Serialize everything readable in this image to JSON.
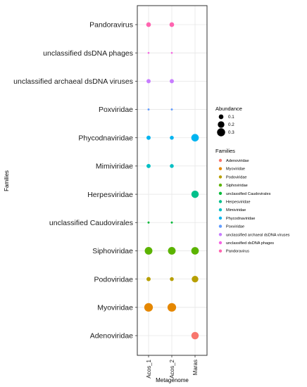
{
  "chart_data": {
    "type": "scatter",
    "title": "",
    "xlabel": "Metagenome",
    "ylabel": "Families",
    "x_categories": [
      "Acos_1",
      "Acos_2",
      "Maras"
    ],
    "y_categories": [
      "Adenoviridae",
      "Myoviridae",
      "Podoviridae",
      "Siphoviridae",
      "unclassified Caudovirales",
      "Herpesviridae",
      "Mimiviridae",
      "Phycodnaviridae",
      "Poxviridae",
      "unclassified archaeal dsDNA viruses",
      "unclassified dsDNA phages",
      "Pandoravirus"
    ],
    "series": [
      {
        "name": "Adenoviridae",
        "color": "#F8766D",
        "points": [
          {
            "x": "Maras",
            "abundance": 0.25
          }
        ]
      },
      {
        "name": "Myoviridae",
        "color": "#E58700",
        "points": [
          {
            "x": "Acos_1",
            "abundance": 0.34
          },
          {
            "x": "Acos_2",
            "abundance": 0.34
          }
        ]
      },
      {
        "name": "Podoviridae",
        "color": "#B79F00",
        "points": [
          {
            "x": "Acos_1",
            "abundance": 0.08
          },
          {
            "x": "Acos_2",
            "abundance": 0.07
          },
          {
            "x": "Maras",
            "abundance": 0.2
          }
        ]
      },
      {
        "name": "Siphoviridae",
        "color": "#5BB300",
        "points": [
          {
            "x": "Acos_1",
            "abundance": 0.27
          },
          {
            "x": "Acos_2",
            "abundance": 0.27
          },
          {
            "x": "Maras",
            "abundance": 0.26
          }
        ]
      },
      {
        "name": "unclassified Caudovirales",
        "color": "#00BA38",
        "points": [
          {
            "x": "Acos_1",
            "abundance": 0.02
          },
          {
            "x": "Acos_2",
            "abundance": 0.02
          }
        ]
      },
      {
        "name": "Herpesviridae",
        "color": "#00C08B",
        "points": [
          {
            "x": "Maras",
            "abundance": 0.25
          }
        ]
      },
      {
        "name": "Mimiviridae",
        "color": "#00BFC4",
        "points": [
          {
            "x": "Acos_1",
            "abundance": 0.08
          },
          {
            "x": "Acos_2",
            "abundance": 0.07
          }
        ]
      },
      {
        "name": "Phycodnaviridae",
        "color": "#00B4F0",
        "points": [
          {
            "x": "Acos_1",
            "abundance": 0.08
          },
          {
            "x": "Acos_2",
            "abundance": 0.07
          },
          {
            "x": "Maras",
            "abundance": 0.26
          }
        ]
      },
      {
        "name": "Poxviridae",
        "color": "#619CFF",
        "points": [
          {
            "x": "Acos_1",
            "abundance": 0.02
          },
          {
            "x": "Acos_2",
            "abundance": 0.02
          }
        ]
      },
      {
        "name": "unclassified archaeal dsDNA viruses",
        "color": "#C77CFF",
        "points": [
          {
            "x": "Acos_1",
            "abundance": 0.08
          },
          {
            "x": "Acos_2",
            "abundance": 0.08
          }
        ]
      },
      {
        "name": "unclassified dsDNA phages",
        "color": "#F564E3",
        "points": [
          {
            "x": "Acos_1",
            "abundance": 0.015
          },
          {
            "x": "Acos_2",
            "abundance": 0.015
          }
        ]
      },
      {
        "name": "Pandoravirus",
        "color": "#FF64B0",
        "points": [
          {
            "x": "Acos_1",
            "abundance": 0.1
          },
          {
            "x": "Acos_2",
            "abundance": 0.1
          }
        ]
      }
    ],
    "size_legend": {
      "title": "Abundance",
      "breaks": [
        0.1,
        0.2,
        0.3
      ],
      "labels": [
        "0.1",
        "0.2",
        "0.3"
      ]
    },
    "color_legend": {
      "title": "Families"
    },
    "grid": true,
    "legend_position": "right"
  }
}
